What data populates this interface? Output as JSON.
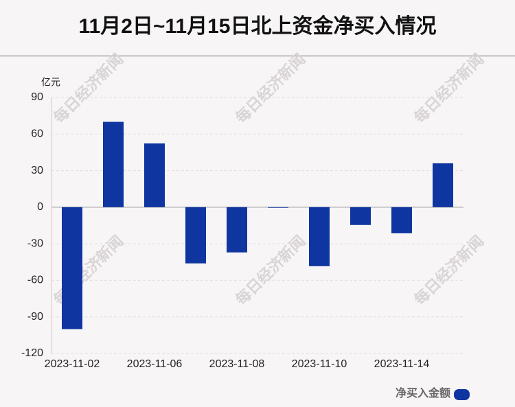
{
  "chart_data": {
    "type": "bar",
    "title": "11月2日~11月15日北上资金净买入情况",
    "y_unit": "亿元",
    "watermark": "每日经济新闻",
    "categories": [
      "2023-11-02",
      null,
      "2023-11-06",
      null,
      "2023-11-08",
      null,
      "2023-11-10",
      null,
      "2023-11-14",
      null
    ],
    "series": [
      {
        "name": "净买入金额",
        "color": "#0f35a0",
        "values": [
          -100,
          70,
          52.3,
          -46.1,
          -37.1,
          -0.5,
          -48.4,
          -14.6,
          -21.4,
          36
        ]
      }
    ],
    "ylim": [
      -120,
      90
    ],
    "yticks": [
      -120,
      -90,
      -60,
      -30,
      0,
      30,
      60,
      90
    ],
    "grid": true
  }
}
